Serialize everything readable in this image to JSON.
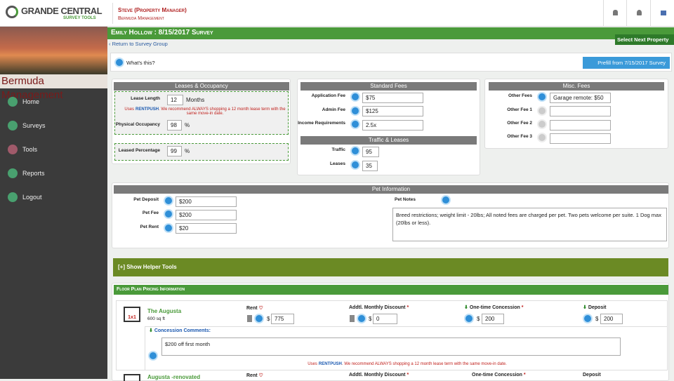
{
  "header": {
    "logo": "GRANDE CENTRAL",
    "logo_sub": "SURVEY TOOLS",
    "user": "Steve (Property Manager)",
    "company": "Bermuda Management"
  },
  "sidebar": {
    "company": "Bermuda Management",
    "nav": [
      "Home",
      "Surveys",
      "Tools",
      "Reports",
      "Logout"
    ]
  },
  "survey": {
    "title": "Emily Hollow : 8/15/2017 Survey",
    "next_button": "Select Next Property",
    "back_link": "Return to Survey Group",
    "help": "What's this?",
    "prefill_button": "Prefill from 7/15/2017 Survey"
  },
  "note": {
    "pre": "Uses",
    "brand": "RENTPUSH",
    "post": ". We recommend ALWAYS shopping a 12 month lease term with the same move-in date."
  },
  "leases": {
    "title": "Leases & Occupancy",
    "fields": [
      {
        "label": "Lease Length",
        "value": "12",
        "unit": "Months"
      },
      {
        "label": "Physical Occupancy",
        "value": "98",
        "unit": "%"
      },
      {
        "label": "Leased Percentage",
        "value": "99",
        "unit": "%"
      }
    ]
  },
  "standard_fees": {
    "title": "Standard Fees",
    "fields": [
      {
        "label": "Application Fee",
        "value": "$75"
      },
      {
        "label": "Admin Fee",
        "value": "$125"
      },
      {
        "label": "Income Requirements",
        "value": "2.5x"
      }
    ]
  },
  "traffic": {
    "title": "Traffic & Leases",
    "fields": [
      {
        "label": "Traffic",
        "value": "95"
      },
      {
        "label": "Leases",
        "value": "35"
      }
    ]
  },
  "misc_fees": {
    "title": "Misc. Fees",
    "fields": [
      {
        "label": "Other Fees",
        "value": "Garage remote: $50"
      },
      {
        "label": "Other Fee 1"
      },
      {
        "label": "Other Fee 2"
      },
      {
        "label": "Other Fee 3"
      }
    ]
  },
  "pet": {
    "title": "Pet Information",
    "fields": [
      {
        "label": "Pet Deposit",
        "value": "$200"
      },
      {
        "label": "Pet Fee",
        "value": "$200"
      },
      {
        "label": "Pet Rent",
        "value": "$20"
      }
    ],
    "notes_label": "Pet Notes",
    "notes": "Breed restrictions; weight limit - 20lbs; All noted fees are charged per pet. Two pets welcome per suite.  1 Dog max (20lbs or less)."
  },
  "helper": "[+] Show Helper Tools",
  "floor_plans": {
    "title": "Floor Plan Pricing Information",
    "currency": "$",
    "columns": [
      "Rent",
      "Addtl. Monthly Discount",
      "One-time Concession",
      "Deposit"
    ],
    "comments_label": "Concession Comments:",
    "plans": [
      {
        "name": "The Augusta",
        "size": "600 sq ft",
        "type": "1x1",
        "values": [
          "775",
          "0",
          "200",
          "200"
        ],
        "comments": "$200 off first month"
      },
      {
        "name": "Augusta -renovated"
      }
    ]
  }
}
